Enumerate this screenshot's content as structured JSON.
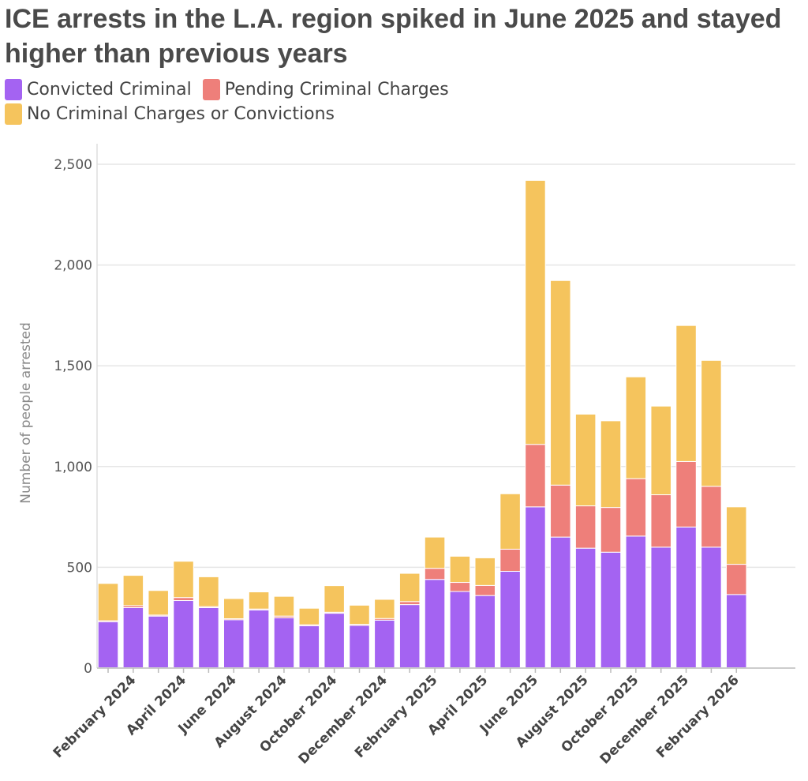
{
  "chart_data": {
    "type": "bar",
    "stacked": true,
    "title": "ICE arrests in the L.A. region spiked in June 2025 and stayed higher than previous years",
    "ylabel": "Number of people arrested",
    "ylim": [
      0,
      2500
    ],
    "yticks": [
      0,
      500,
      1000,
      1500,
      2000,
      2500
    ],
    "ytick_labels": [
      "0",
      "500",
      "1,000",
      "1,500",
      "2,000",
      "2,500"
    ],
    "grid": true,
    "categories": [
      "January 2024",
      "February 2024",
      "March 2024",
      "April 2024",
      "May 2024",
      "June 2024",
      "July 2024",
      "August 2024",
      "September 2024",
      "October 2024",
      "November 2024",
      "December 2024",
      "January 2025",
      "February 2025",
      "March 2025",
      "April 2025",
      "May 2025",
      "June 2025",
      "July 2025",
      "August 2025",
      "September 2025",
      "October 2025",
      "November 2025",
      "December 2025",
      "January 2026",
      "February 2026"
    ],
    "xtick_labels": [
      "February 2024",
      "April 2024",
      "June 2024",
      "August 2024",
      "October 2024",
      "December 2024",
      "February 2025",
      "April 2025",
      "June 2025",
      "August 2025",
      "October 2025",
      "December 2025",
      "February 2026"
    ],
    "series": [
      {
        "name": "Convicted Criminal",
        "color": "#a463f2",
        "values": [
          230,
          300,
          258,
          335,
          300,
          240,
          288,
          250,
          210,
          272,
          212,
          238,
          315,
          440,
          380,
          360,
          480,
          800,
          650,
          595,
          575,
          655,
          600,
          700,
          600,
          365
        ]
      },
      {
        "name": "Pending Criminal Charges",
        "color": "#ee7f7a",
        "values": [
          5,
          10,
          5,
          15,
          5,
          5,
          5,
          8,
          5,
          5,
          5,
          8,
          15,
          55,
          45,
          50,
          110,
          310,
          258,
          210,
          222,
          285,
          260,
          325,
          302,
          150
        ]
      },
      {
        "name": "No Criminal Charges or Convictions",
        "color": "#f5c45d",
        "values": [
          185,
          150,
          122,
          180,
          148,
          100,
          85,
          98,
          82,
          132,
          95,
          95,
          140,
          155,
          130,
          137,
          275,
          1310,
          1015,
          455,
          430,
          505,
          440,
          675,
          625,
          285
        ]
      }
    ]
  }
}
